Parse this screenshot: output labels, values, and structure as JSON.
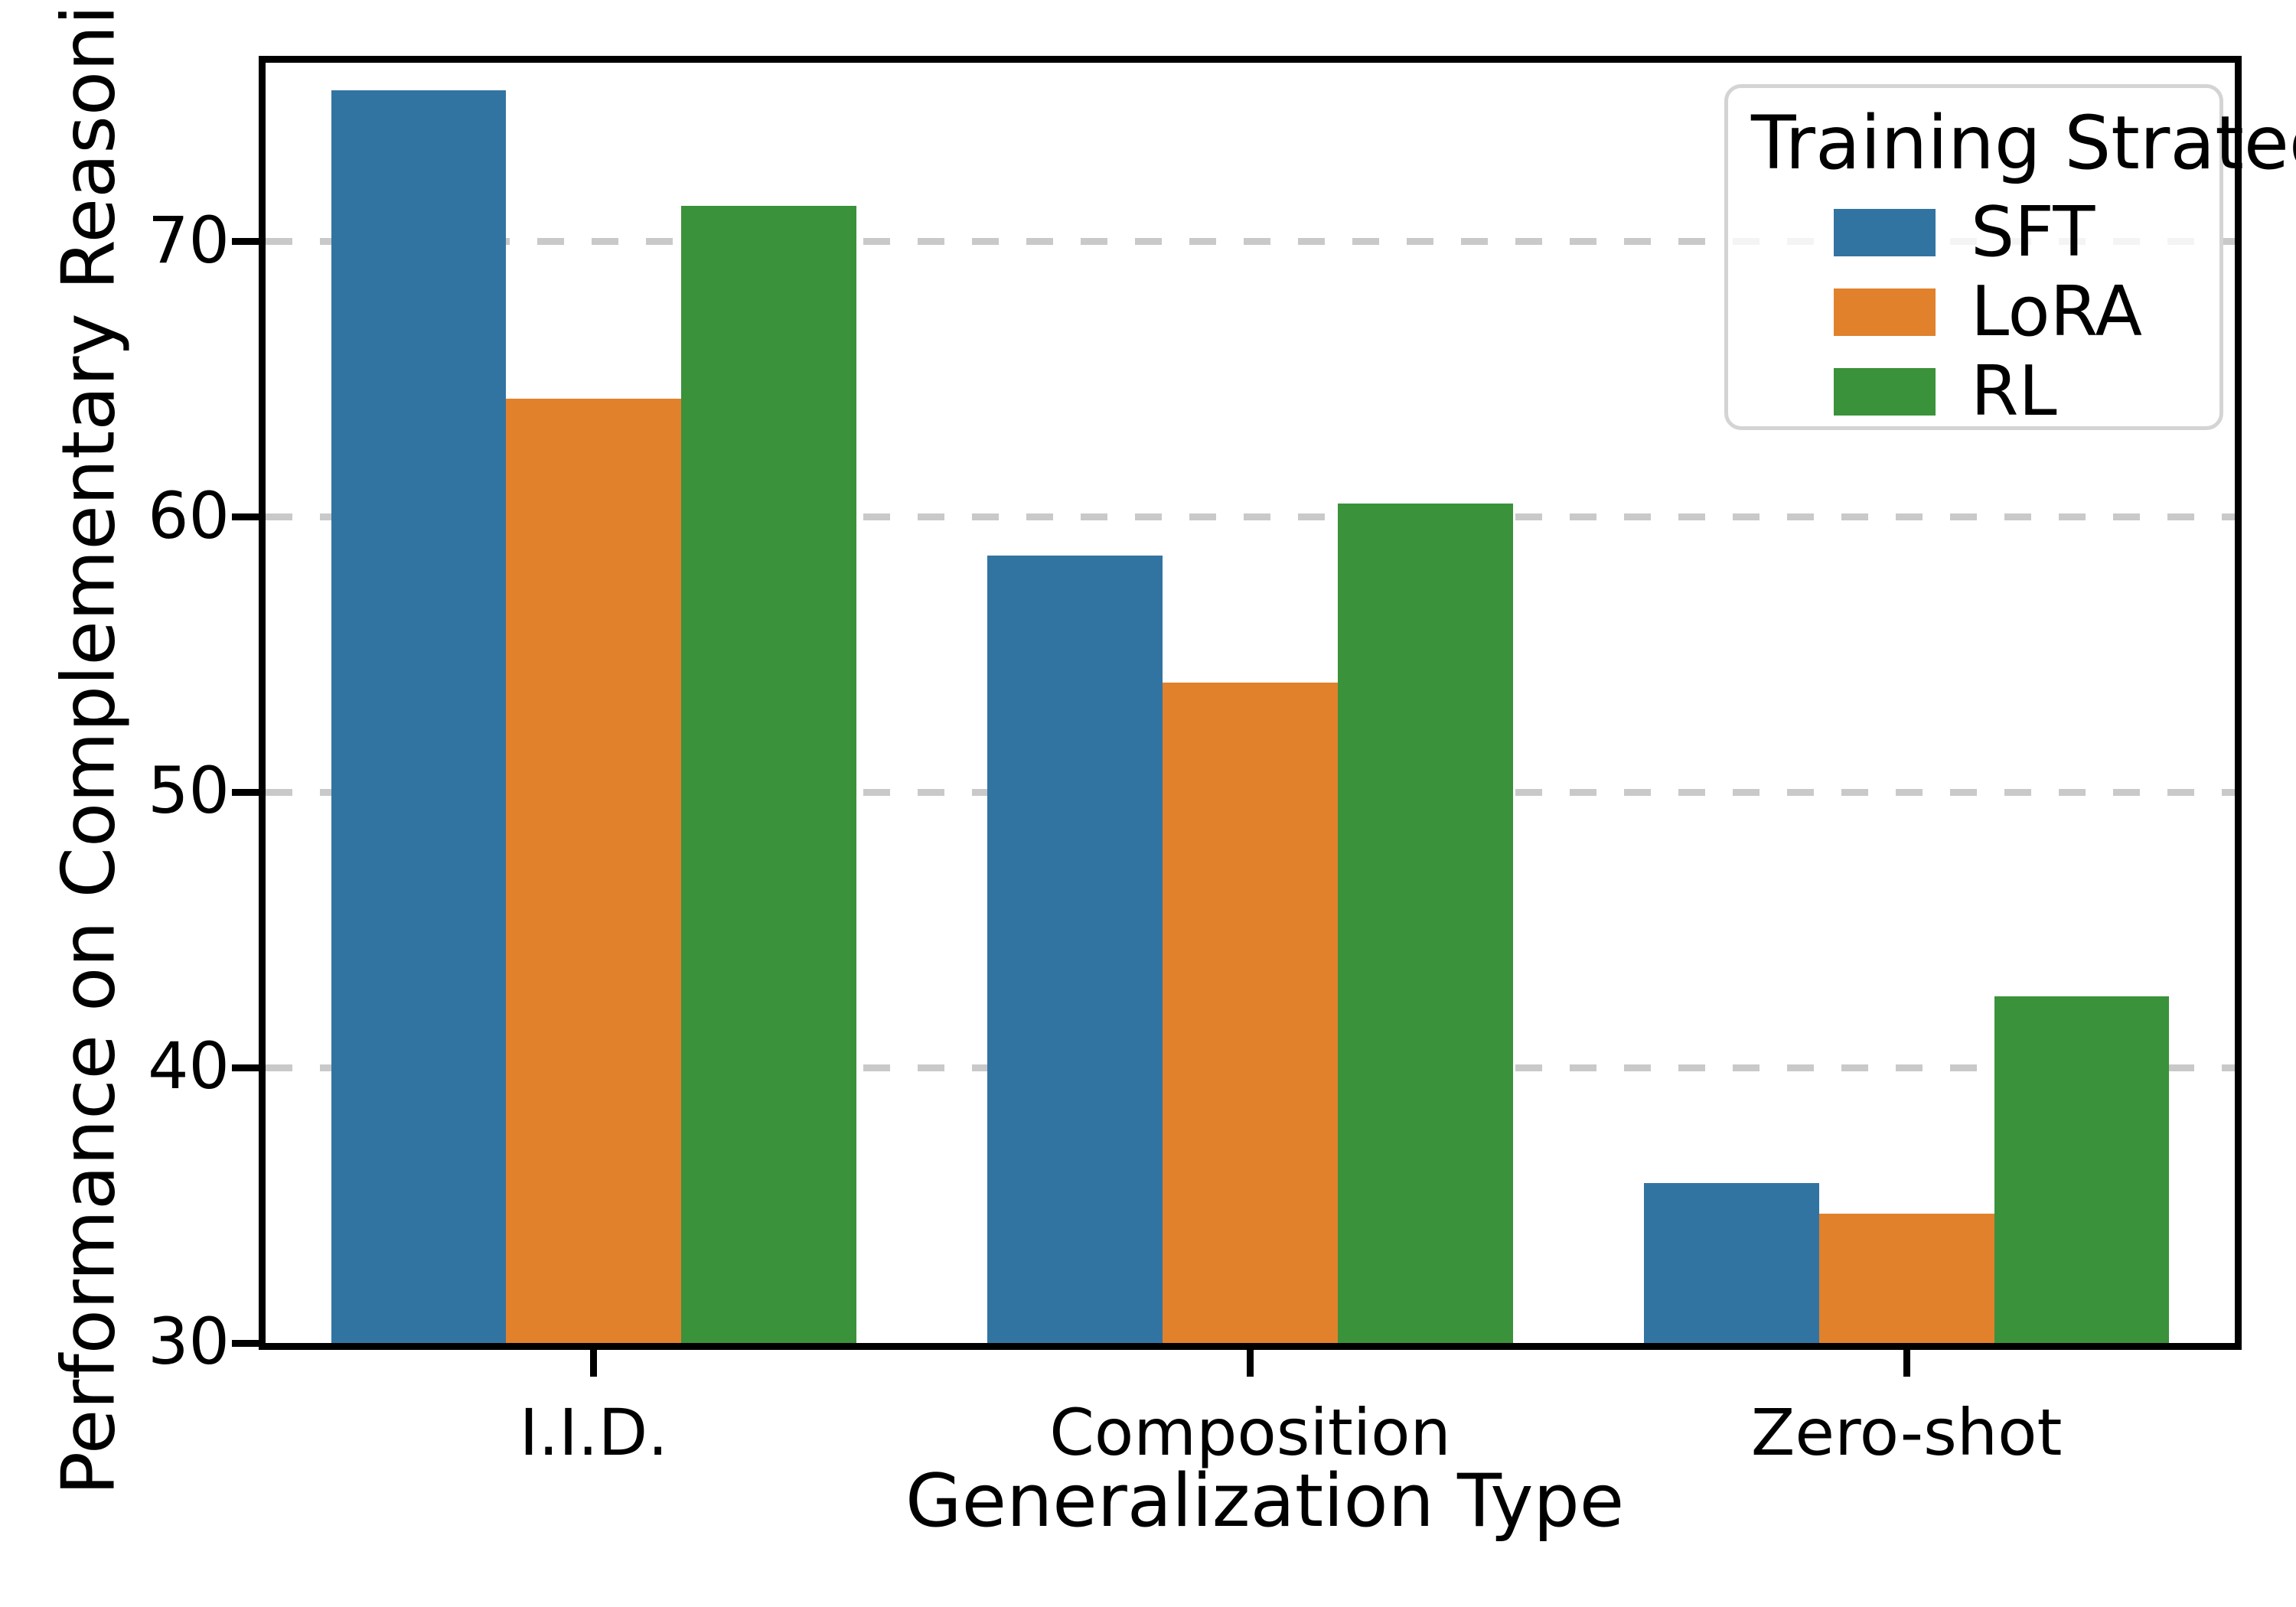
{
  "chart_data": {
    "type": "bar",
    "title": "",
    "xlabel": "Generalization Type",
    "ylabel": "Performance on Complementary Reasoning",
    "categories": [
      "I.I.D.",
      "Composition",
      "Zero-shot"
    ],
    "series": [
      {
        "name": "SFT",
        "color": "#3274A1",
        "values": [
          75.5,
          58.6,
          35.8
        ]
      },
      {
        "name": "LoRA",
        "color": "#E1812C",
        "values": [
          64.3,
          54.0,
          34.7
        ]
      },
      {
        "name": "RL",
        "color": "#3A923A",
        "values": [
          71.3,
          60.5,
          42.6
        ]
      }
    ],
    "ylim": [
      30,
      76.5
    ],
    "yticks": [
      30,
      40,
      50,
      60,
      70
    ],
    "grid": "horizontal-dashed",
    "group_width_fraction": 0.8,
    "legend": {
      "title": "Training Strategy",
      "position": "upper right"
    }
  },
  "colors": {
    "grid": "#C9C9C9",
    "spine": "#000000",
    "legend_border": "#D4D4D4",
    "background": "#FFFFFF"
  }
}
